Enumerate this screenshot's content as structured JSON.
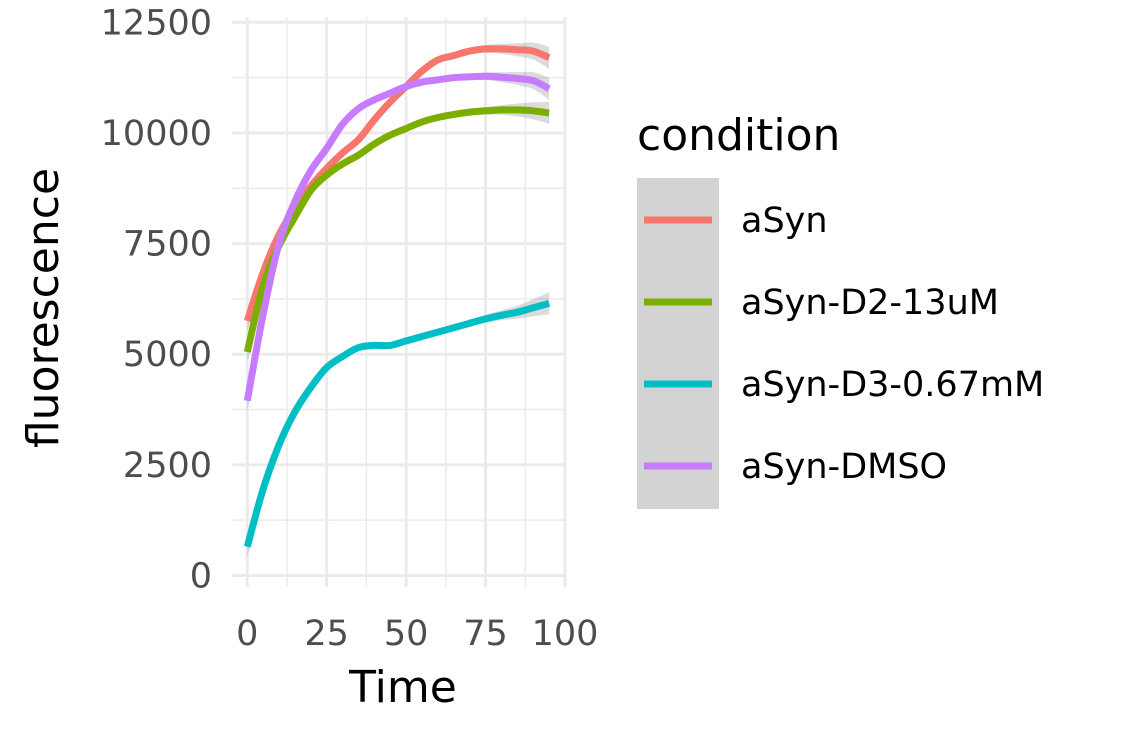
{
  "chart_data": {
    "type": "line",
    "title": "",
    "xlabel": "Time",
    "ylabel": "fluorescence",
    "xlim": [
      0,
      100
    ],
    "ylim": [
      0,
      12500
    ],
    "xticks": [
      0,
      25,
      50,
      75,
      100
    ],
    "xtick_labels": [
      "0",
      "25",
      "50",
      "75",
      "100"
    ],
    "yticks": [
      0,
      2500,
      5000,
      7500,
      10000,
      12500
    ],
    "ytick_labels": [
      "0",
      "2500",
      "5000",
      "7500",
      "10000",
      "12500"
    ],
    "grid": true,
    "confidence_band": true,
    "legend": {
      "title": "condition",
      "position": "right",
      "background": "#d3d3d3"
    },
    "series": [
      {
        "name": "aSyn",
        "color": "#F8766D",
        "x": [
          0,
          5,
          10,
          15,
          20,
          25,
          30,
          35,
          40,
          45,
          50,
          55,
          60,
          65,
          70,
          75,
          80,
          85,
          90,
          95
        ],
        "y": [
          5750,
          6850,
          7700,
          8300,
          8800,
          9200,
          9550,
          9850,
          10300,
          10700,
          11050,
          11400,
          11650,
          11750,
          11850,
          11900,
          11900,
          11880,
          11850,
          11700
        ]
      },
      {
        "name": "aSyn-D2-13uM",
        "color": "#7CAE00",
        "x": [
          0,
          5,
          10,
          15,
          20,
          25,
          30,
          35,
          40,
          45,
          50,
          55,
          60,
          65,
          70,
          75,
          80,
          85,
          90,
          95
        ],
        "y": [
          5050,
          6550,
          7450,
          8100,
          8700,
          9050,
          9300,
          9500,
          9750,
          9950,
          10100,
          10250,
          10350,
          10420,
          10470,
          10500,
          10520,
          10520,
          10500,
          10450
        ]
      },
      {
        "name": "aSyn-D3-0.67mM",
        "color": "#00BFC4",
        "x": [
          0,
          5,
          10,
          15,
          20,
          25,
          30,
          35,
          40,
          45,
          50,
          55,
          60,
          65,
          70,
          75,
          80,
          85,
          90,
          95
        ],
        "y": [
          650,
          1950,
          2950,
          3700,
          4250,
          4700,
          4950,
          5150,
          5200,
          5200,
          5300,
          5400,
          5500,
          5600,
          5700,
          5800,
          5880,
          5950,
          6050,
          6150
        ]
      },
      {
        "name": "aSyn-DMSO",
        "color": "#C77CFF",
        "x": [
          0,
          5,
          10,
          15,
          20,
          25,
          30,
          35,
          40,
          45,
          50,
          55,
          60,
          65,
          70,
          75,
          80,
          85,
          90,
          95
        ],
        "y": [
          3950,
          5900,
          7500,
          8450,
          9150,
          9650,
          10200,
          10550,
          10750,
          10900,
          11050,
          11150,
          11200,
          11250,
          11270,
          11280,
          11260,
          11230,
          11180,
          11000
        ]
      }
    ]
  }
}
